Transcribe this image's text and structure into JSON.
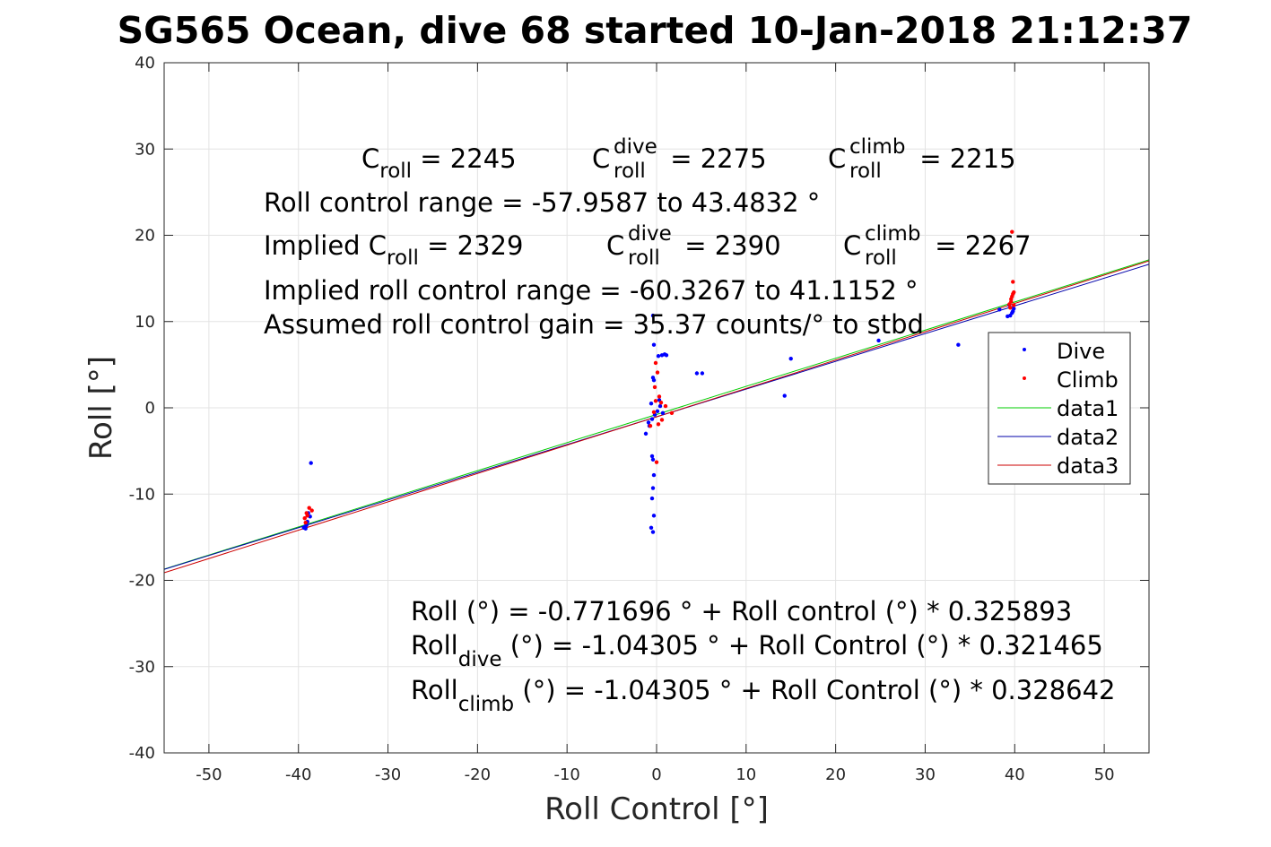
{
  "chart_data": {
    "type": "scatter",
    "title": "SG565 Ocean, dive 68 started 10-Jan-2018 21:12:37",
    "xlabel": "Roll Control [°]",
    "ylabel": "Roll [°]",
    "xlim": [
      -55,
      55
    ],
    "ylim": [
      -40,
      40
    ],
    "xticks": [
      -50,
      -40,
      -30,
      -20,
      -10,
      0,
      10,
      20,
      30,
      40,
      50
    ],
    "yticks": [
      -40,
      -30,
      -20,
      -10,
      0,
      10,
      20,
      30,
      40
    ],
    "grid": true,
    "legend": {
      "position": "right",
      "entries": [
        {
          "label": "Dive",
          "color": "#0000ff",
          "kind": "point"
        },
        {
          "label": "Climb",
          "color": "#ff0000",
          "kind": "point"
        },
        {
          "label": "data1",
          "color": "#00cc00",
          "kind": "line"
        },
        {
          "label": "data2",
          "color": "#0000aa",
          "kind": "line"
        },
        {
          "label": "data3",
          "color": "#cc0000",
          "kind": "line"
        }
      ]
    },
    "series": [
      {
        "name": "Dive",
        "color": "#0000ff",
        "points": [
          [
            -39.2,
            -14.0
          ],
          [
            -39.1,
            -13.6
          ],
          [
            -39.3,
            -13.8
          ],
          [
            -39.0,
            -13.2
          ],
          [
            -38.7,
            -12.6
          ],
          [
            -38.6,
            -6.4
          ],
          [
            -38.9,
            -12.2
          ],
          [
            -39.4,
            -13.9
          ],
          [
            -0.4,
            10.7
          ],
          [
            -0.3,
            7.3
          ],
          [
            0.2,
            6.0
          ],
          [
            0.6,
            6.1
          ],
          [
            0.9,
            6.2
          ],
          [
            1.1,
            6.1
          ],
          [
            -0.4,
            3.5
          ],
          [
            -0.3,
            3.2
          ],
          [
            -0.5,
            -5.6
          ],
          [
            -0.4,
            -6.0
          ],
          [
            -0.3,
            -7.8
          ],
          [
            -0.4,
            -9.3
          ],
          [
            -0.5,
            -10.5
          ],
          [
            -0.3,
            -12.5
          ],
          [
            -0.6,
            -13.9
          ],
          [
            -0.4,
            -14.4
          ],
          [
            -1.2,
            -3.0
          ],
          [
            -0.8,
            -2.1
          ],
          [
            -0.5,
            -1.3
          ],
          [
            -0.2,
            -0.8
          ],
          [
            0.1,
            -0.4
          ],
          [
            0.4,
            0.2
          ],
          [
            -0.6,
            0.5
          ],
          [
            0.7,
            -0.6
          ],
          [
            -0.9,
            -1.7
          ],
          [
            0.3,
            0.9
          ],
          [
            4.5,
            4.0
          ],
          [
            5.1,
            4.0
          ],
          [
            14.3,
            1.4
          ],
          [
            15.0,
            5.7
          ],
          [
            24.8,
            7.8
          ],
          [
            33.7,
            7.3
          ],
          [
            38.3,
            11.4
          ],
          [
            39.2,
            10.6
          ],
          [
            39.5,
            10.7
          ],
          [
            39.7,
            11.0
          ],
          [
            39.9,
            11.5
          ],
          [
            39.4,
            11.9
          ],
          [
            39.8,
            11.2
          ]
        ]
      },
      {
        "name": "Climb",
        "color": "#ff0000",
        "points": [
          [
            -39.3,
            -12.8
          ],
          [
            -39.0,
            -12.5
          ],
          [
            -38.8,
            -11.6
          ],
          [
            -38.5,
            -11.9
          ],
          [
            -39.2,
            -13.3
          ],
          [
            -39.1,
            -12.2
          ],
          [
            -0.1,
            5.2
          ],
          [
            0.1,
            4.1
          ],
          [
            -0.2,
            2.4
          ],
          [
            0.3,
            1.3
          ],
          [
            0.5,
            0.6
          ],
          [
            -0.3,
            -0.5
          ],
          [
            0.0,
            -6.3
          ],
          [
            0.6,
            -1.4
          ],
          [
            1.0,
            0.2
          ],
          [
            1.7,
            -0.6
          ],
          [
            -0.7,
            -2.1
          ],
          [
            0.2,
            -1.9
          ],
          [
            -0.1,
            0.8
          ],
          [
            39.4,
            12.0
          ],
          [
            39.6,
            12.6
          ],
          [
            39.8,
            13.2
          ],
          [
            39.7,
            12.9
          ],
          [
            39.9,
            13.4
          ],
          [
            39.6,
            12.3
          ],
          [
            39.8,
            14.6
          ],
          [
            39.7,
            20.4
          ],
          [
            39.5,
            11.6
          ],
          [
            39.9,
            11.9
          ]
        ]
      },
      {
        "name": "data1",
        "color": "#00cc00",
        "line": {
          "intercept": -0.771696,
          "slope": 0.325893
        }
      },
      {
        "name": "data2",
        "color": "#0000aa",
        "line": {
          "intercept": -1.04305,
          "slope": 0.321465
        }
      },
      {
        "name": "data3",
        "color": "#cc0000",
        "line": {
          "intercept": -1.04305,
          "slope": 0.328642
        }
      }
    ],
    "annotations": {
      "line1": [
        {
          "base": "C",
          "sub": "roll",
          "rest": " = 2245"
        },
        {
          "base": "C",
          "sub": "roll",
          "sup": "dive",
          "rest": " = 2275"
        },
        {
          "base": "C",
          "sub": "roll",
          "sup": "climb",
          "rest": " = 2215"
        }
      ],
      "line2": "Roll control range = -57.9587 to 43.4832 °",
      "line3_prefix": "Implied C",
      "line3": [
        {
          "sub": "roll",
          "rest": " = 2329"
        },
        {
          "base": "C",
          "sub": "roll",
          "sup": "dive",
          "rest": " = 2390"
        },
        {
          "base": "C",
          "sub": "roll",
          "sup": "climb",
          "rest": " = 2267"
        }
      ],
      "line4": "Implied roll control range = -60.3267 to 41.1152 °",
      "line5": "Assumed roll control gain = 35.37 counts/° to stbd",
      "eq1": "Roll (°) = -0.771696 ° + Roll control (°) * 0.325893",
      "eq2_base": "Roll",
      "eq2_sub": "dive",
      "eq2_rest": " (°) = -1.04305 ° + Roll Control (°) * 0.321465",
      "eq3_base": "Roll",
      "eq3_sub": "climb",
      "eq3_rest": " (°) = -1.04305 ° + Roll Control (°) * 0.328642"
    }
  }
}
